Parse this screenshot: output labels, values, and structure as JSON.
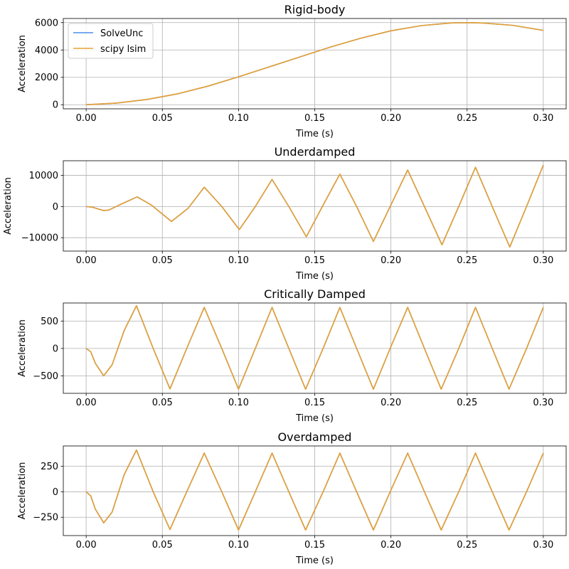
{
  "legend": {
    "position": "upper-left",
    "items": [
      "SolveUnc",
      "scipy lsim"
    ]
  },
  "colors": {
    "solveunc": "#4c8ee8",
    "lsim": "#e8a030",
    "grid": "#b0b0b0"
  },
  "chart_data": [
    {
      "type": "line",
      "title": "Rigid-body",
      "xlabel": "Time (s)",
      "ylabel": "Acceleration",
      "xlim": [
        -0.015,
        0.315
      ],
      "ylim": [
        -300,
        6300
      ],
      "xticks": [
        0.0,
        0.05,
        0.1,
        0.15,
        0.2,
        0.25,
        0.3
      ],
      "xtick_labels": [
        "0.00",
        "0.05",
        "0.10",
        "0.15",
        "0.20",
        "0.25",
        "0.30"
      ],
      "yticks": [
        0,
        2000,
        4000,
        6000
      ],
      "ytick_labels": [
        "0",
        "2000",
        "4000",
        "6000"
      ],
      "grid": true,
      "series": [
        {
          "name": "SolveUnc",
          "x": [
            0.0,
            0.02,
            0.04,
            0.06,
            0.08,
            0.1,
            0.12,
            0.14,
            0.16,
            0.18,
            0.2,
            0.22,
            0.24,
            0.25,
            0.26,
            0.28,
            0.3
          ],
          "y": [
            0,
            120,
            385,
            795,
            1360,
            2040,
            2760,
            3480,
            4200,
            4850,
            5400,
            5780,
            5980,
            6000,
            5970,
            5800,
            5430
          ]
        },
        {
          "name": "scipy lsim",
          "x": [
            0.0,
            0.02,
            0.04,
            0.06,
            0.08,
            0.1,
            0.12,
            0.14,
            0.16,
            0.18,
            0.2,
            0.22,
            0.24,
            0.25,
            0.26,
            0.28,
            0.3
          ],
          "y": [
            0,
            120,
            385,
            795,
            1360,
            2040,
            2760,
            3480,
            4200,
            4850,
            5400,
            5780,
            5980,
            6000,
            5970,
            5800,
            5430
          ]
        }
      ]
    },
    {
      "type": "line",
      "title": "Underdamped",
      "xlabel": "Time (s)",
      "ylabel": "Acceleration",
      "xlim": [
        -0.015,
        0.315
      ],
      "ylim": [
        -14300,
        14700
      ],
      "xticks": [
        0.0,
        0.05,
        0.1,
        0.15,
        0.2,
        0.25,
        0.3
      ],
      "xtick_labels": [
        "0.00",
        "0.05",
        "0.10",
        "0.15",
        "0.20",
        "0.25",
        "0.30"
      ],
      "yticks": [
        -10000,
        0,
        10000
      ],
      "ytick_labels": [
        "−10000",
        "0",
        "10000"
      ],
      "grid": true,
      "series": [
        {
          "name": "SolveUnc",
          "x": [
            0.0,
            0.004,
            0.008,
            0.0115,
            0.015,
            0.024,
            0.0335,
            0.043,
            0.056,
            0.067,
            0.0775,
            0.089,
            0.1005,
            0.111,
            0.122,
            0.133,
            0.1445,
            0.155,
            0.1665,
            0.1775,
            0.1885,
            0.1995,
            0.211,
            0.222,
            0.2335,
            0.2445,
            0.2555,
            0.2665,
            0.278,
            0.289,
            0.3
          ],
          "y": [
            0,
            -200,
            -800,
            -1300,
            -1100,
            1000,
            3100,
            400,
            -4800,
            -500,
            6200,
            0,
            -7400,
            0,
            8700,
            0,
            -9700,
            0,
            10400,
            0,
            -11200,
            0,
            11700,
            0,
            -12300,
            0,
            12600,
            0,
            -13000,
            0,
            13300
          ]
        },
        {
          "name": "scipy lsim",
          "x": [
            0.0,
            0.004,
            0.008,
            0.0115,
            0.015,
            0.024,
            0.0335,
            0.043,
            0.056,
            0.067,
            0.0775,
            0.089,
            0.1005,
            0.111,
            0.122,
            0.133,
            0.1445,
            0.155,
            0.1665,
            0.1775,
            0.1885,
            0.1995,
            0.211,
            0.222,
            0.2335,
            0.2445,
            0.2555,
            0.2665,
            0.278,
            0.289,
            0.3
          ],
          "y": [
            0,
            -200,
            -800,
            -1300,
            -1100,
            1000,
            3100,
            400,
            -4800,
            -500,
            6200,
            0,
            -7400,
            0,
            8700,
            0,
            -9700,
            0,
            10400,
            0,
            -11200,
            0,
            11700,
            0,
            -12300,
            0,
            12600,
            0,
            -13000,
            0,
            13300
          ]
        }
      ]
    },
    {
      "type": "line",
      "title": "Critically Damped",
      "xlabel": "Time (s)",
      "ylabel": "Acceleration",
      "xlim": [
        -0.015,
        0.315
      ],
      "ylim": [
        -820,
        830
      ],
      "xticks": [
        0.0,
        0.05,
        0.1,
        0.15,
        0.2,
        0.25,
        0.3
      ],
      "xtick_labels": [
        "0.00",
        "0.05",
        "0.10",
        "0.15",
        "0.20",
        "0.25",
        "0.30"
      ],
      "yticks": [
        -500,
        0,
        500
      ],
      "ytick_labels": [
        "−500",
        "0",
        "500"
      ],
      "grid": true,
      "series": [
        {
          "name": "SolveUnc",
          "x": [
            0.0,
            0.003,
            0.006,
            0.0115,
            0.017,
            0.025,
            0.033,
            0.044,
            0.055,
            0.066,
            0.0775,
            0.089,
            0.1,
            0.111,
            0.122,
            0.133,
            0.144,
            0.1555,
            0.1665,
            0.1775,
            0.1885,
            0.1995,
            0.211,
            0.222,
            0.233,
            0.2445,
            0.2555,
            0.2665,
            0.2775,
            0.289,
            0.3
          ],
          "y": [
            0,
            -60,
            -270,
            -500,
            -300,
            330,
            780,
            0,
            -740,
            0,
            750,
            0,
            -745,
            0,
            750,
            0,
            -745,
            0,
            750,
            0,
            -745,
            0,
            750,
            0,
            -745,
            0,
            750,
            0,
            -745,
            0,
            750
          ]
        },
        {
          "name": "scipy lsim",
          "x": [
            0.0,
            0.003,
            0.006,
            0.0115,
            0.017,
            0.025,
            0.033,
            0.044,
            0.055,
            0.066,
            0.0775,
            0.089,
            0.1,
            0.111,
            0.122,
            0.133,
            0.144,
            0.1555,
            0.1665,
            0.1775,
            0.1885,
            0.1995,
            0.211,
            0.222,
            0.233,
            0.2445,
            0.2555,
            0.2665,
            0.2775,
            0.289,
            0.3
          ],
          "y": [
            0,
            -60,
            -270,
            -500,
            -300,
            330,
            780,
            0,
            -740,
            0,
            750,
            0,
            -745,
            0,
            750,
            0,
            -745,
            0,
            750,
            0,
            -745,
            0,
            750,
            0,
            -745,
            0,
            750,
            0,
            -745,
            0,
            750
          ]
        }
      ]
    },
    {
      "type": "line",
      "title": "Overdamped",
      "xlabel": "Time (s)",
      "ylabel": "Acceleration",
      "xlim": [
        -0.015,
        0.315
      ],
      "ylim": [
        -430,
        450
      ],
      "xticks": [
        0.0,
        0.05,
        0.1,
        0.15,
        0.2,
        0.25,
        0.3
      ],
      "xtick_labels": [
        "0.00",
        "0.05",
        "0.10",
        "0.15",
        "0.20",
        "0.25",
        "0.30"
      ],
      "yticks": [
        -250,
        0,
        250
      ],
      "ytick_labels": [
        "−250",
        "0",
        "250"
      ],
      "grid": true,
      "series": [
        {
          "name": "SolveUnc",
          "x": [
            0.0,
            0.003,
            0.006,
            0.0115,
            0.017,
            0.025,
            0.033,
            0.044,
            0.055,
            0.066,
            0.0775,
            0.089,
            0.1,
            0.111,
            0.122,
            0.133,
            0.144,
            0.1555,
            0.1665,
            0.1775,
            0.1885,
            0.1995,
            0.211,
            0.222,
            0.233,
            0.2445,
            0.2555,
            0.2665,
            0.2775,
            0.289,
            0.3
          ],
          "y": [
            0,
            -40,
            -170,
            -305,
            -200,
            170,
            410,
            0,
            -370,
            0,
            380,
            0,
            -375,
            0,
            380,
            0,
            -375,
            0,
            380,
            0,
            -375,
            0,
            380,
            0,
            -375,
            0,
            380,
            0,
            -375,
            0,
            380
          ]
        },
        {
          "name": "scipy lsim",
          "x": [
            0.0,
            0.003,
            0.006,
            0.0115,
            0.017,
            0.025,
            0.033,
            0.044,
            0.055,
            0.066,
            0.0775,
            0.089,
            0.1,
            0.111,
            0.122,
            0.133,
            0.144,
            0.1555,
            0.1665,
            0.1775,
            0.1885,
            0.1995,
            0.211,
            0.222,
            0.233,
            0.2445,
            0.2555,
            0.2665,
            0.2775,
            0.289,
            0.3
          ],
          "y": [
            0,
            -40,
            -170,
            -305,
            -200,
            170,
            410,
            0,
            -370,
            0,
            380,
            0,
            -375,
            0,
            380,
            0,
            -375,
            0,
            380,
            0,
            -375,
            0,
            380,
            0,
            -375,
            0,
            380,
            0,
            -375,
            0,
            380
          ]
        }
      ]
    }
  ]
}
